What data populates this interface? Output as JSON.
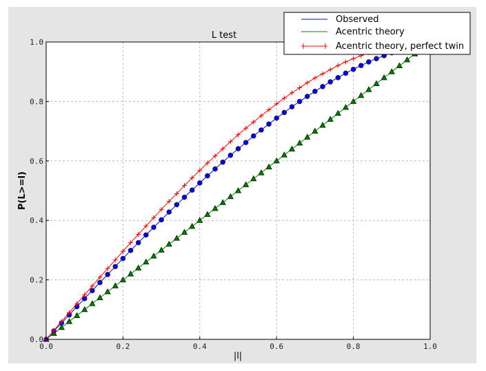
{
  "chart_data": {
    "type": "line",
    "title": "L test",
    "xlabel": "|l|",
    "ylabel": "P(L>=l)",
    "xlim": [
      0,
      1
    ],
    "ylim": [
      0,
      1
    ],
    "grid": true,
    "legend_placement": "top-right",
    "xticks": [
      "0.0",
      "0.2",
      "0.4",
      "0.6",
      "0.8",
      "1.0"
    ],
    "yticks": [
      "0.0",
      "0.2",
      "0.4",
      "0.6",
      "0.8",
      "1.0"
    ],
    "x": [
      0,
      0.02,
      0.04,
      0.06,
      0.08,
      0.1,
      0.12,
      0.14,
      0.16,
      0.18,
      0.2,
      0.22,
      0.24,
      0.26,
      0.28,
      0.3,
      0.32,
      0.34,
      0.36,
      0.38,
      0.4,
      0.42,
      0.44,
      0.46,
      0.48,
      0.5,
      0.52,
      0.54,
      0.56,
      0.58,
      0.6,
      0.62,
      0.64,
      0.66,
      0.68,
      0.7,
      0.72,
      0.74,
      0.76,
      0.78,
      0.8,
      0.82,
      0.84,
      0.86,
      0.88,
      0.9,
      0.92,
      0.94,
      0.96,
      0.98,
      1.0
    ],
    "series": [
      {
        "name": "Observed",
        "color": "#0000ff",
        "marker": "circle",
        "values": [
          0,
          0.028,
          0.055,
          0.082,
          0.11,
          0.137,
          0.164,
          0.191,
          0.218,
          0.245,
          0.272,
          0.299,
          0.325,
          0.351,
          0.377,
          0.402,
          0.428,
          0.453,
          0.478,
          0.502,
          0.526,
          0.55,
          0.573,
          0.596,
          0.619,
          0.641,
          0.662,
          0.684,
          0.704,
          0.724,
          0.744,
          0.763,
          0.782,
          0.8,
          0.817,
          0.834,
          0.85,
          0.866,
          0.88,
          0.895,
          0.908,
          0.921,
          0.933,
          0.944,
          0.954,
          0.964,
          0.973,
          0.981,
          0.988,
          0.995,
          1.0
        ]
      },
      {
        "name": "Acentric theory",
        "color": "#008000",
        "marker": "triangle",
        "values": [
          0,
          0.02,
          0.04,
          0.06,
          0.08,
          0.1,
          0.12,
          0.14,
          0.16,
          0.18,
          0.2,
          0.22,
          0.24,
          0.26,
          0.28,
          0.3,
          0.32,
          0.34,
          0.36,
          0.38,
          0.4,
          0.42,
          0.44,
          0.46,
          0.48,
          0.5,
          0.52,
          0.54,
          0.56,
          0.58,
          0.6,
          0.62,
          0.64,
          0.66,
          0.68,
          0.7,
          0.72,
          0.74,
          0.76,
          0.78,
          0.8,
          0.82,
          0.84,
          0.86,
          0.88,
          0.9,
          0.92,
          0.94,
          0.96,
          0.98,
          1.0
        ]
      },
      {
        "name": "Acentric theory, perfect twin",
        "color": "#ff0000",
        "marker": "plus",
        "values": [
          0,
          0.03,
          0.06,
          0.09,
          0.12,
          0.15,
          0.179,
          0.209,
          0.238,
          0.267,
          0.296,
          0.325,
          0.353,
          0.381,
          0.409,
          0.437,
          0.464,
          0.49,
          0.517,
          0.543,
          0.568,
          0.593,
          0.617,
          0.641,
          0.665,
          0.688,
          0.71,
          0.731,
          0.752,
          0.772,
          0.792,
          0.811,
          0.829,
          0.846,
          0.863,
          0.879,
          0.893,
          0.907,
          0.921,
          0.933,
          0.944,
          0.954,
          0.964,
          0.972,
          0.979,
          0.986,
          0.991,
          0.995,
          0.998,
          0.999,
          1.0
        ]
      }
    ]
  }
}
